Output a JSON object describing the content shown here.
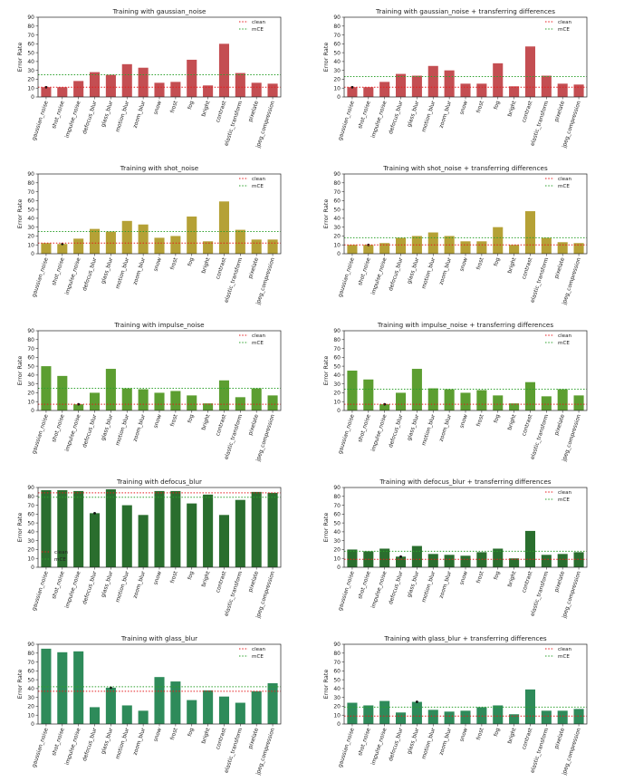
{
  "chart_data": [
    {
      "type": "bar",
      "title": "Training with gaussian_noise",
      "xlabel": "",
      "ylabel": "Error Rate",
      "ylim": [
        0,
        90
      ],
      "yticks": [
        0,
        10,
        20,
        30,
        40,
        50,
        60,
        70,
        80,
        90
      ],
      "grid": false,
      "legend_position": "top-right",
      "categories": [
        "gaussian_noise",
        "shot_noise",
        "impulse_noise",
        "defocus_blur",
        "glass_blur",
        "motion_blur",
        "zoom_blur",
        "snow",
        "frost",
        "fog",
        "bright",
        "contrast",
        "elastic_transform",
        "pixelate",
        "jpeg_compression"
      ],
      "values": [
        11,
        11,
        18,
        28,
        25,
        37,
        33,
        16,
        17,
        42,
        13,
        60,
        27,
        16,
        15
      ],
      "highlight_index": 0,
      "bar_color": "#c44e52",
      "lines": [
        {
          "name": "clean",
          "value": 11,
          "color": "#e41a1c"
        },
        {
          "name": "mCE",
          "value": 25,
          "color": "#2ca02c"
        }
      ]
    },
    {
      "type": "bar",
      "title": "Training with gaussian_noise + transferring differences",
      "xlabel": "",
      "ylabel": "Error Rate",
      "ylim": [
        0,
        90
      ],
      "yticks": [
        0,
        10,
        20,
        30,
        40,
        50,
        60,
        70,
        80,
        90
      ],
      "grid": false,
      "legend_position": "top-right",
      "categories": [
        "gaussian_noise",
        "shot_noise",
        "impulse_noise",
        "defocus_blur",
        "glass_blur",
        "motion_blur",
        "zoom_blur",
        "snow",
        "frost",
        "fog",
        "bright",
        "contrast",
        "elastic_transform",
        "pixelate",
        "jpeg_compression"
      ],
      "values": [
        11,
        11,
        17,
        26,
        24,
        35,
        30,
        15,
        15,
        38,
        12,
        57,
        24,
        15,
        14
      ],
      "highlight_index": 0,
      "bar_color": "#c44e52",
      "lines": [
        {
          "name": "clean",
          "value": 11,
          "color": "#e41a1c"
        },
        {
          "name": "mCE",
          "value": 23,
          "color": "#2ca02c"
        }
      ]
    },
    {
      "type": "bar",
      "title": "Training with shot_noise",
      "xlabel": "",
      "ylabel": "Error Rate",
      "ylim": [
        0,
        90
      ],
      "yticks": [
        0,
        10,
        20,
        30,
        40,
        50,
        60,
        70,
        80,
        90
      ],
      "grid": false,
      "legend_position": "top-right",
      "categories": [
        "gaussian_noise",
        "shot_noise",
        "impulse_noise",
        "defocus_blur",
        "glass_blur",
        "motion_blur",
        "zoom_blur",
        "snow",
        "frost",
        "fog",
        "bright",
        "contrast",
        "elastic_transform",
        "pixelate",
        "jpeg_compression"
      ],
      "values": [
        12,
        11,
        17,
        28,
        25,
        37,
        33,
        18,
        20,
        42,
        14,
        59,
        27,
        16,
        16
      ],
      "highlight_index": 1,
      "bar_color": "#b5a136",
      "lines": [
        {
          "name": "clean",
          "value": 12,
          "color": "#e41a1c"
        },
        {
          "name": "mCE",
          "value": 25,
          "color": "#2ca02c"
        }
      ]
    },
    {
      "type": "bar",
      "title": "Training with shot_noise + transferring differences",
      "xlabel": "",
      "ylabel": "Error Rate",
      "ylim": [
        0,
        90
      ],
      "yticks": [
        0,
        10,
        20,
        30,
        40,
        50,
        60,
        70,
        80,
        90
      ],
      "grid": false,
      "legend_position": "top-right",
      "categories": [
        "gaussian_noise",
        "shot_noise",
        "impulse_noise",
        "defocus_blur",
        "glass_blur",
        "motion_blur",
        "zoom_blur",
        "snow",
        "frost",
        "fog",
        "bright",
        "contrast",
        "elastic_transform",
        "pixelate",
        "jpeg_compression"
      ],
      "values": [
        10,
        10,
        12,
        18,
        20,
        24,
        20,
        14,
        14,
        30,
        10,
        48,
        18,
        13,
        12
      ],
      "highlight_index": 1,
      "bar_color": "#b5a136",
      "lines": [
        {
          "name": "clean",
          "value": 10,
          "color": "#e41a1c"
        },
        {
          "name": "mCE",
          "value": 18,
          "color": "#2ca02c"
        }
      ]
    },
    {
      "type": "bar",
      "title": "Training with impulse_noise",
      "xlabel": "",
      "ylabel": "Error Rate",
      "ylim": [
        0,
        90
      ],
      "yticks": [
        0,
        10,
        20,
        30,
        40,
        50,
        60,
        70,
        80,
        90
      ],
      "grid": false,
      "legend_position": "top-right",
      "categories": [
        "gaussian_noise",
        "shot_noise",
        "impulse_noise",
        "defocus_blur",
        "glass_blur",
        "motion_blur",
        "zoom_blur",
        "snow",
        "frost",
        "fog",
        "bright",
        "contrast",
        "elastic_transform",
        "pixelate",
        "jpeg_compression"
      ],
      "values": [
        50,
        39,
        7,
        20,
        47,
        25,
        24,
        20,
        22,
        17,
        8,
        34,
        15,
        25,
        17
      ],
      "highlight_index": 2,
      "bar_color": "#5c9e31",
      "lines": [
        {
          "name": "clean",
          "value": 7,
          "color": "#e41a1c"
        },
        {
          "name": "mCE",
          "value": 25,
          "color": "#2ca02c"
        }
      ]
    },
    {
      "type": "bar",
      "title": "Training with impulse_noise + transferring differences",
      "xlabel": "",
      "ylabel": "Error Rate",
      "ylim": [
        0,
        90
      ],
      "yticks": [
        0,
        10,
        20,
        30,
        40,
        50,
        60,
        70,
        80,
        90
      ],
      "grid": false,
      "legend_position": "top-right",
      "categories": [
        "gaussian_noise",
        "shot_noise",
        "impulse_noise",
        "defocus_blur",
        "glass_blur",
        "motion_blur",
        "zoom_blur",
        "snow",
        "frost",
        "fog",
        "bright",
        "contrast",
        "elastic_transform",
        "pixelate",
        "jpeg_compression"
      ],
      "values": [
        45,
        35,
        7,
        20,
        47,
        25,
        24,
        20,
        23,
        17,
        8,
        32,
        16,
        24,
        17
      ],
      "highlight_index": 2,
      "bar_color": "#5c9e31",
      "lines": [
        {
          "name": "clean",
          "value": 7,
          "color": "#e41a1c"
        },
        {
          "name": "mCE",
          "value": 24,
          "color": "#2ca02c"
        }
      ]
    },
    {
      "type": "bar",
      "title": "Training with defocus_blur",
      "xlabel": "",
      "ylabel": "Error Rate",
      "ylim": [
        0,
        90
      ],
      "yticks": [
        0,
        10,
        20,
        30,
        40,
        50,
        60,
        70,
        80,
        90
      ],
      "grid": false,
      "legend_position": "bottom-left",
      "categories": [
        "gaussian_noise",
        "shot_noise",
        "impulse_noise",
        "defocus_blur",
        "glass_blur",
        "motion_blur",
        "zoom_blur",
        "snow",
        "frost",
        "fog",
        "bright",
        "contrast",
        "elastic_transform",
        "pixelate",
        "jpeg_compression"
      ],
      "values": [
        87,
        87,
        86,
        61,
        88,
        70,
        59,
        86,
        86,
        72,
        82,
        59,
        76,
        85,
        84
      ],
      "highlight_index": 3,
      "bar_color": "#2a6e2e",
      "lines": [
        {
          "name": "clean",
          "value": 84,
          "color": "#e41a1c"
        },
        {
          "name": "mCE",
          "value": 79,
          "color": "#2ca02c"
        }
      ]
    },
    {
      "type": "bar",
      "title": "Training with defocus_blur + transferring differences",
      "xlabel": "",
      "ylabel": "Error Rate",
      "ylim": [
        0,
        90
      ],
      "yticks": [
        0,
        10,
        20,
        30,
        40,
        50,
        60,
        70,
        80,
        90
      ],
      "grid": false,
      "legend_position": "top-right",
      "categories": [
        "gaussian_noise",
        "shot_noise",
        "impulse_noise",
        "defocus_blur",
        "glass_blur",
        "motion_blur",
        "zoom_blur",
        "snow",
        "frost",
        "fog",
        "bright",
        "contrast",
        "elastic_transform",
        "pixelate",
        "jpeg_compression"
      ],
      "values": [
        20,
        18,
        21,
        12,
        24,
        15,
        14,
        13,
        17,
        21,
        10,
        41,
        14,
        15,
        17
      ],
      "highlight_index": 3,
      "bar_color": "#2a6e2e",
      "lines": [
        {
          "name": "clean",
          "value": 9,
          "color": "#e41a1c"
        },
        {
          "name": "mCE",
          "value": 18,
          "color": "#2ca02c"
        }
      ]
    },
    {
      "type": "bar",
      "title": "Training with glass_blur",
      "xlabel": "",
      "ylabel": "Error Rate",
      "ylim": [
        0,
        90
      ],
      "yticks": [
        0,
        10,
        20,
        30,
        40,
        50,
        60,
        70,
        80,
        90
      ],
      "grid": false,
      "legend_position": "top-right",
      "categories": [
        "gaussian_noise",
        "shot_noise",
        "impulse_noise",
        "defocus_blur",
        "glass_blur",
        "motion_blur",
        "zoom_blur",
        "snow",
        "frost",
        "fog",
        "bright",
        "contrast",
        "elastic_transform",
        "pixelate",
        "jpeg_compression"
      ],
      "values": [
        85,
        81,
        82,
        19,
        41,
        21,
        15,
        53,
        48,
        27,
        38,
        31,
        24,
        37,
        46
      ],
      "highlight_index": 4,
      "bar_color": "#2e8b5a",
      "lines": [
        {
          "name": "clean",
          "value": 37,
          "color": "#e41a1c"
        },
        {
          "name": "mCE",
          "value": 42,
          "color": "#2ca02c"
        }
      ]
    },
    {
      "type": "bar",
      "title": "Training with glass_blur + transferring differences",
      "xlabel": "",
      "ylabel": "Error Rate",
      "ylim": [
        0,
        90
      ],
      "yticks": [
        0,
        10,
        20,
        30,
        40,
        50,
        60,
        70,
        80,
        90
      ],
      "grid": false,
      "legend_position": "top-right",
      "categories": [
        "gaussian_noise",
        "shot_noise",
        "impulse_noise",
        "defocus_blur",
        "glass_blur",
        "motion_blur",
        "zoom_blur",
        "snow",
        "frost",
        "fog",
        "bright",
        "contrast",
        "elastic_transform",
        "pixelate",
        "jpeg_compression"
      ],
      "values": [
        24,
        21,
        26,
        13,
        25,
        16,
        14,
        15,
        19,
        21,
        11,
        39,
        15,
        15,
        17
      ],
      "highlight_index": 4,
      "bar_color": "#2e8b5a",
      "lines": [
        {
          "name": "clean",
          "value": 9,
          "color": "#e41a1c"
        },
        {
          "name": "mCE",
          "value": 19,
          "color": "#2ca02c"
        }
      ]
    }
  ]
}
